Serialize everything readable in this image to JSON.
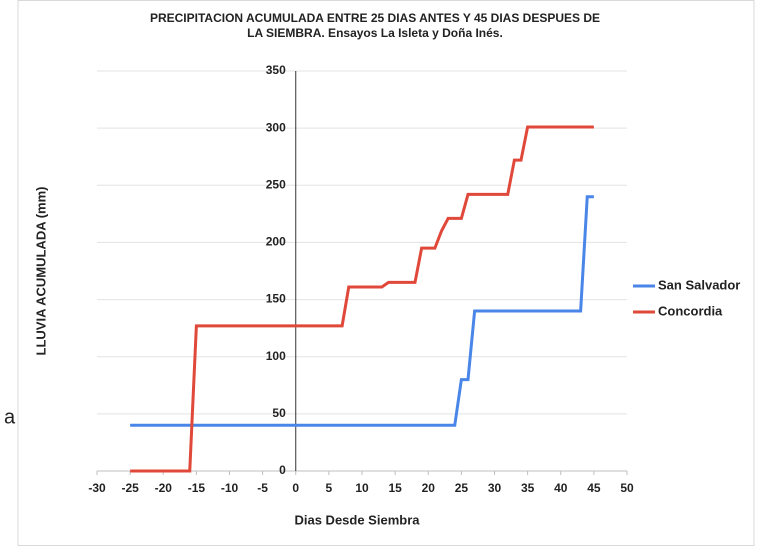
{
  "side_text": "a",
  "chart_data": {
    "type": "line",
    "title": [
      "PRECIPITACION ACUMULADA ENTRE 25 DIAS ANTES Y 45 DIAS DESPUES DE",
      "LA SIEMBRA. Ensayos  La Isleta y Doña Inés."
    ],
    "xlabel": "Dias Desde Siembra",
    "ylabel": "LLUVIA ACUMULADA (mm)",
    "xlim": [
      -30,
      50
    ],
    "xticks": [
      -30,
      -25,
      -20,
      -15,
      -10,
      -5,
      0,
      5,
      10,
      15,
      20,
      25,
      30,
      35,
      40,
      45,
      50
    ],
    "ylim": [
      0,
      350
    ],
    "yticks": [
      0,
      50,
      100,
      150,
      200,
      250,
      300,
      350
    ],
    "grid": true,
    "legend": "right",
    "series": [
      {
        "name": "San Salvador",
        "color": "#4a86e8",
        "x": [
          -25,
          24,
          25,
          26,
          27,
          43,
          44,
          45
        ],
        "values": [
          40,
          40,
          80,
          80,
          140,
          140,
          240,
          240
        ]
      },
      {
        "name": "Concordia",
        "color": "#e0483a",
        "x": [
          -25,
          -16,
          -15,
          7,
          8,
          13,
          14,
          18,
          19,
          21,
          22,
          23,
          25,
          26,
          32,
          33,
          34,
          35,
          45
        ],
        "values": [
          0,
          0,
          127,
          127,
          161,
          161,
          165,
          165,
          195,
          195,
          210,
          221,
          221,
          242,
          242,
          272,
          272,
          301,
          301
        ]
      }
    ]
  }
}
